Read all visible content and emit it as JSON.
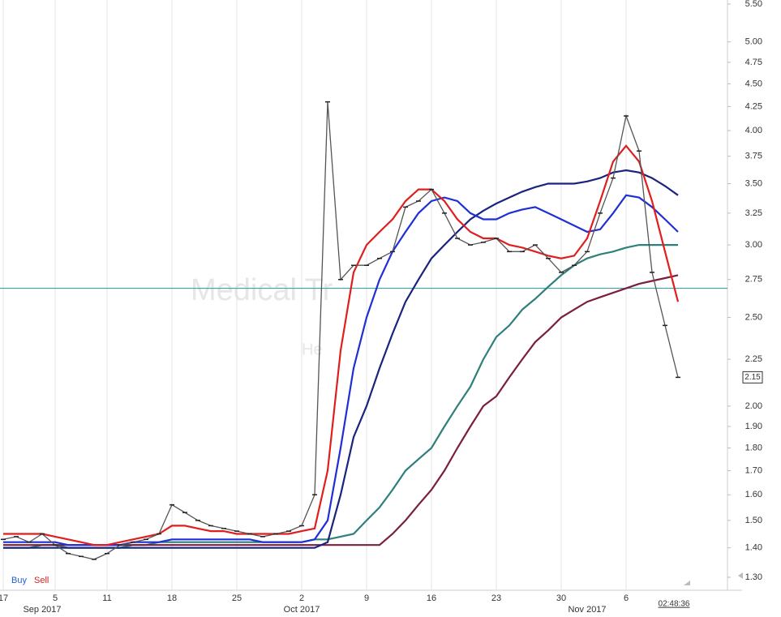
{
  "chart_data": {
    "type": "line",
    "watermark": "Medical Tr",
    "watermark_sub": "He",
    "legend_buy": "Buy",
    "legend_sell": "Sell",
    "clock": "02:48:36",
    "log_scale": true,
    "grid": "x",
    "color": "#555555",
    "categories": [
      "17",
      null,
      null,
      null,
      "5",
      null,
      null,
      null,
      "11",
      null,
      null,
      null,
      null,
      "18",
      null,
      null,
      null,
      null,
      "25",
      null,
      null,
      null,
      null,
      "2",
      null,
      null,
      null,
      null,
      "9",
      null,
      null,
      null,
      null,
      "16",
      null,
      null,
      null,
      null,
      "23",
      null,
      null,
      null,
      null,
      "30",
      null,
      null,
      null,
      null,
      "6",
      null,
      null,
      null,
      null
    ],
    "month_categories": [
      null,
      null,
      null,
      "Sep 2017",
      null,
      null,
      null,
      null,
      null,
      null,
      null,
      null,
      null,
      null,
      null,
      null,
      null,
      null,
      null,
      null,
      null,
      null,
      null,
      "Oct 2017",
      null,
      null,
      null,
      null,
      null,
      null,
      null,
      null,
      null,
      null,
      null,
      null,
      null,
      null,
      null,
      null,
      null,
      null,
      null,
      null,
      null,
      "Nov 2017",
      null,
      null,
      null,
      null,
      null,
      null,
      null
    ],
    "values": [
      1.43,
      1.44,
      1.42,
      1.45,
      1.41,
      1.38,
      1.37,
      1.36,
      1.38,
      1.41,
      1.42,
      1.43,
      1.45,
      1.56,
      1.53,
      1.5,
      1.48,
      1.47,
      1.46,
      1.45,
      1.44,
      1.45,
      1.46,
      1.48,
      1.6,
      4.3,
      2.75,
      2.85,
      2.85,
      2.9,
      2.95,
      3.3,
      3.35,
      3.45,
      3.25,
      3.05,
      3.0,
      3.02,
      3.05,
      2.95,
      2.95,
      3.0,
      2.9,
      2.8,
      2.85,
      2.95,
      3.25,
      3.55,
      4.15,
      3.8,
      2.8,
      2.45,
      2.15
    ],
    "overlays": [
      {
        "color": "#2f7f7a",
        "values": [
          1.4,
          1.4,
          1.4,
          1.41,
          1.41,
          1.4,
          1.4,
          1.4,
          1.4,
          1.4,
          1.41,
          1.41,
          1.42,
          1.42,
          1.42,
          1.42,
          1.42,
          1.42,
          1.42,
          1.42,
          1.42,
          1.42,
          1.42,
          1.42,
          1.43,
          1.43,
          1.44,
          1.45,
          1.5,
          1.55,
          1.62,
          1.7,
          1.75,
          1.8,
          1.9,
          2.0,
          2.1,
          2.25,
          2.38,
          2.45,
          2.55,
          2.62,
          2.7,
          2.78,
          2.85,
          2.9,
          2.93,
          2.95,
          2.98,
          3.0,
          3.0,
          3.0,
          3.0
        ]
      },
      {
        "color": "#7a1f3d",
        "values": [
          1.41,
          1.41,
          1.41,
          1.41,
          1.41,
          1.41,
          1.41,
          1.41,
          1.41,
          1.41,
          1.41,
          1.41,
          1.41,
          1.41,
          1.41,
          1.41,
          1.41,
          1.41,
          1.41,
          1.41,
          1.41,
          1.41,
          1.41,
          1.41,
          1.41,
          1.41,
          1.41,
          1.41,
          1.41,
          1.41,
          1.45,
          1.5,
          1.56,
          1.62,
          1.7,
          1.8,
          1.9,
          2.0,
          2.05,
          2.15,
          2.25,
          2.35,
          2.42,
          2.5,
          2.55,
          2.6,
          2.63,
          2.66,
          2.69,
          2.72,
          2.74,
          2.76,
          2.78
        ]
      },
      {
        "color": "#1a237e",
        "values": [
          1.4,
          1.4,
          1.4,
          1.4,
          1.4,
          1.4,
          1.4,
          1.4,
          1.4,
          1.4,
          1.4,
          1.4,
          1.4,
          1.4,
          1.4,
          1.4,
          1.4,
          1.4,
          1.4,
          1.4,
          1.4,
          1.4,
          1.4,
          1.4,
          1.4,
          1.42,
          1.6,
          1.85,
          2.0,
          2.2,
          2.4,
          2.6,
          2.75,
          2.9,
          3.0,
          3.1,
          3.2,
          3.27,
          3.33,
          3.38,
          3.43,
          3.47,
          3.5,
          3.5,
          3.5,
          3.52,
          3.55,
          3.6,
          3.62,
          3.6,
          3.55,
          3.48,
          3.4
        ]
      },
      {
        "color": "#1f2fd6",
        "values": [
          1.42,
          1.42,
          1.42,
          1.42,
          1.42,
          1.41,
          1.41,
          1.41,
          1.41,
          1.41,
          1.42,
          1.42,
          1.42,
          1.43,
          1.43,
          1.43,
          1.43,
          1.43,
          1.43,
          1.43,
          1.42,
          1.42,
          1.42,
          1.42,
          1.43,
          1.5,
          1.8,
          2.2,
          2.5,
          2.75,
          2.95,
          3.1,
          3.25,
          3.35,
          3.38,
          3.35,
          3.25,
          3.2,
          3.2,
          3.25,
          3.28,
          3.3,
          3.25,
          3.2,
          3.15,
          3.1,
          3.12,
          3.25,
          3.4,
          3.38,
          3.3,
          3.2,
          3.1
        ]
      },
      {
        "color": "#e01e1e",
        "values": [
          1.45,
          1.45,
          1.45,
          1.45,
          1.44,
          1.43,
          1.42,
          1.41,
          1.41,
          1.42,
          1.43,
          1.44,
          1.45,
          1.48,
          1.48,
          1.47,
          1.46,
          1.46,
          1.45,
          1.45,
          1.45,
          1.45,
          1.45,
          1.46,
          1.47,
          1.7,
          2.3,
          2.8,
          3.0,
          3.1,
          3.2,
          3.35,
          3.45,
          3.45,
          3.35,
          3.2,
          3.1,
          3.05,
          3.05,
          3.0,
          2.98,
          2.95,
          2.92,
          2.9,
          2.92,
          3.05,
          3.35,
          3.7,
          3.85,
          3.7,
          3.35,
          2.95,
          2.6
        ]
      }
    ],
    "hline": 2.69,
    "hline_color": "#3aa6a6",
    "last_price": 2.15,
    "ylim": [
      1.3,
      5.5
    ],
    "yticks": [
      {
        "value": 1.3,
        "label": "1.30"
      },
      {
        "value": 1.4,
        "label": "1.40"
      },
      {
        "value": 1.5,
        "label": "1.50"
      },
      {
        "value": 1.6,
        "label": "1.60"
      },
      {
        "value": 1.7,
        "label": "1.70"
      },
      {
        "value": 1.8,
        "label": "1.80"
      },
      {
        "value": 1.9,
        "label": "1.90"
      },
      {
        "value": 2.0,
        "label": "2.00"
      },
      {
        "value": 2.25,
        "label": "2.25"
      },
      {
        "value": 2.5,
        "label": "2.50"
      },
      {
        "value": 2.75,
        "label": "2.75"
      },
      {
        "value": 3.0,
        "label": "3.00"
      },
      {
        "value": 3.25,
        "label": "3.25"
      },
      {
        "value": 3.5,
        "label": "3.50"
      },
      {
        "value": 3.75,
        "label": "3.75"
      },
      {
        "value": 4.0,
        "label": "4.00"
      },
      {
        "value": 4.25,
        "label": "4.25"
      },
      {
        "value": 4.5,
        "label": "4.50"
      },
      {
        "value": 4.75,
        "label": "4.75"
      },
      {
        "value": 5.0,
        "label": "5.00"
      },
      {
        "value": 5.5,
        "label": "5.50"
      }
    ]
  }
}
